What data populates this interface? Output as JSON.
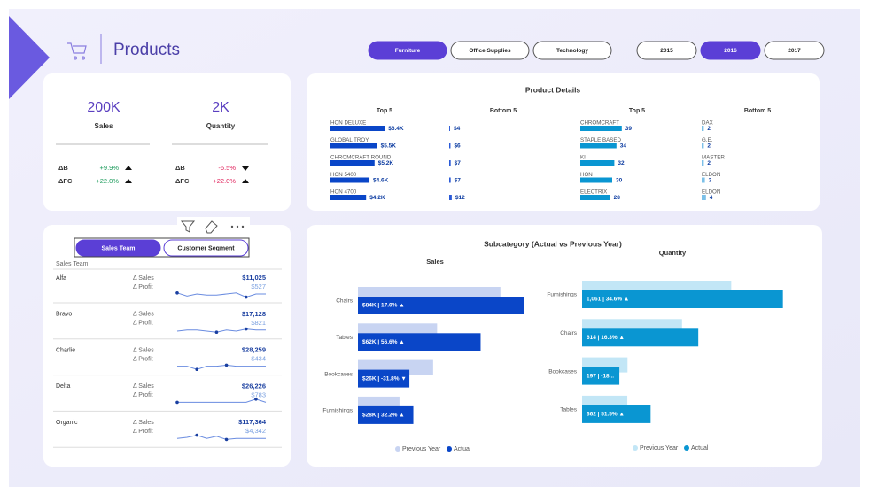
{
  "header": {
    "title": "Products"
  },
  "filters": {
    "categories": [
      "Furniture",
      "Office Supplies",
      "Technology"
    ],
    "category_selected": 0,
    "years": [
      "2015",
      "2016",
      "2017"
    ],
    "year_selected": 1
  },
  "kpis": [
    {
      "value": "200K",
      "label": "Sales",
      "deltas": [
        {
          "label": "ΔB",
          "value": "+9.9%",
          "color": "#1a9a5a",
          "direction": "up"
        },
        {
          "label": "ΔFC",
          "value": "+22.0%",
          "color": "#1a9a5a",
          "direction": "up"
        }
      ]
    },
    {
      "value": "2K",
      "label": "Quantity",
      "deltas": [
        {
          "label": "ΔB",
          "value": "-6.5%",
          "color": "#e0205a",
          "direction": "down"
        },
        {
          "label": "ΔFC",
          "value": "+22.0%",
          "color": "#e0205a",
          "direction": "up"
        }
      ]
    }
  ],
  "product_details": {
    "title": "Product Details",
    "panels": [
      {
        "title": "Top 5",
        "type": "bar",
        "categories": [
          "HON DELUXE",
          "GLOBAL TROY",
          "CHROMCRAFT ROUND",
          "HON 5400",
          "HON 4700"
        ],
        "values": [
          6400,
          5500,
          5200,
          4600,
          4200
        ],
        "value_labels": [
          "$6.4K",
          "$5.5K",
          "$5.2K",
          "$4.6K",
          "$4.2K"
        ],
        "color": "#0a46c8",
        "xlim": [
          0,
          7000
        ]
      },
      {
        "title": "Bottom 5",
        "type": "bar",
        "values": [
          4,
          6,
          7,
          7,
          12
        ],
        "value_labels": [
          "$4",
          "$6",
          "$7",
          "$7",
          "$12"
        ],
        "color": "#2a5ad8",
        "xlim": [
          0,
          50
        ]
      },
      {
        "title": "Top 5",
        "type": "bar",
        "categories": [
          "CHROMCRAFT",
          "STAPLE BASED",
          "KI",
          "HON",
          "ELECTRIX"
        ],
        "values": [
          39,
          34,
          32,
          30,
          28
        ],
        "color": "#0a96d2",
        "xlim": [
          0,
          40
        ]
      },
      {
        "title": "Bottom 5",
        "type": "bar",
        "categories": [
          "DAX",
          "G.E.",
          "MASTER",
          "ELDON",
          "ELDON"
        ],
        "values": [
          2,
          2,
          2,
          3,
          4
        ],
        "color": "#7cc0e8",
        "xlim": [
          0,
          40
        ]
      }
    ]
  },
  "sales_team": {
    "tabs": [
      "Sales Team",
      "Customer Segment"
    ],
    "tab_selected": 0,
    "column_header": "Sales Team",
    "sales_label": "Δ Sales",
    "profit_label": "Δ Profit",
    "trend_ylim": [
      0,
      10
    ],
    "rows": [
      {
        "name": "Alfa",
        "sales": "$11,025",
        "profit": "$527",
        "trend": [
          6,
          3,
          5,
          4,
          4,
          5,
          6,
          2,
          5,
          5
        ]
      },
      {
        "name": "Bravo",
        "sales": "$17,128",
        "profit": "$821",
        "trend": [
          4,
          5,
          5,
          4,
          3,
          5,
          4,
          6,
          5,
          5
        ]
      },
      {
        "name": "Charlie",
        "sales": "$28,259",
        "profit": "$434",
        "trend": [
          5,
          5,
          2,
          5,
          5,
          6,
          5,
          5,
          5,
          5
        ]
      },
      {
        "name": "Delta",
        "sales": "$26,226",
        "profit": "$783",
        "trend": [
          5,
          5,
          5,
          5,
          5,
          5,
          5,
          5,
          8,
          5
        ]
      },
      {
        "name": "Organic",
        "sales": "$117,364",
        "profit": "$4,342",
        "trend": [
          5,
          6,
          8,
          5,
          7,
          4,
          5,
          5,
          5,
          5
        ]
      }
    ]
  },
  "subcategory": {
    "title": "Subcategory (Actual vs Previous Year)",
    "charts": [
      {
        "title": "Sales",
        "type": "bar",
        "categories": [
          "Chairs",
          "Tables",
          "Bookcases",
          "Furnishings"
        ],
        "xlim": [
          0,
          90000
        ],
        "series": [
          {
            "name": "Previous Year",
            "color": "#c8d4f2",
            "values": [
              72000,
              40000,
              38000,
              21000
            ]
          },
          {
            "name": "Actual",
            "color": "#0a46c8",
            "values": [
              84000,
              62000,
              26000,
              28000
            ],
            "value_labels": [
              "$84K | 17.0% ▲",
              "$62K | 56.6% ▲",
              "$26K | -31.8% ▼",
              "$28K | 32.2% ▲"
            ]
          }
        ]
      },
      {
        "title": "Quantity",
        "type": "bar",
        "categories": [
          "Furnishings",
          "Chairs",
          "Bookcases",
          "Tables"
        ],
        "xlim": [
          0,
          1100
        ],
        "series": [
          {
            "name": "Previous Year",
            "color": "#c2e6f6",
            "values": [
              788,
              528,
              240,
              239
            ]
          },
          {
            "name": "Actual",
            "color": "#0a96d2",
            "values": [
              1061,
              614,
              197,
              362
            ],
            "value_labels": [
              "1,061 | 34.6% ▲",
              "614 | 16.3% ▲",
              "197 | -18...",
              "362 | 51.5% ▲"
            ]
          }
        ]
      }
    ]
  }
}
